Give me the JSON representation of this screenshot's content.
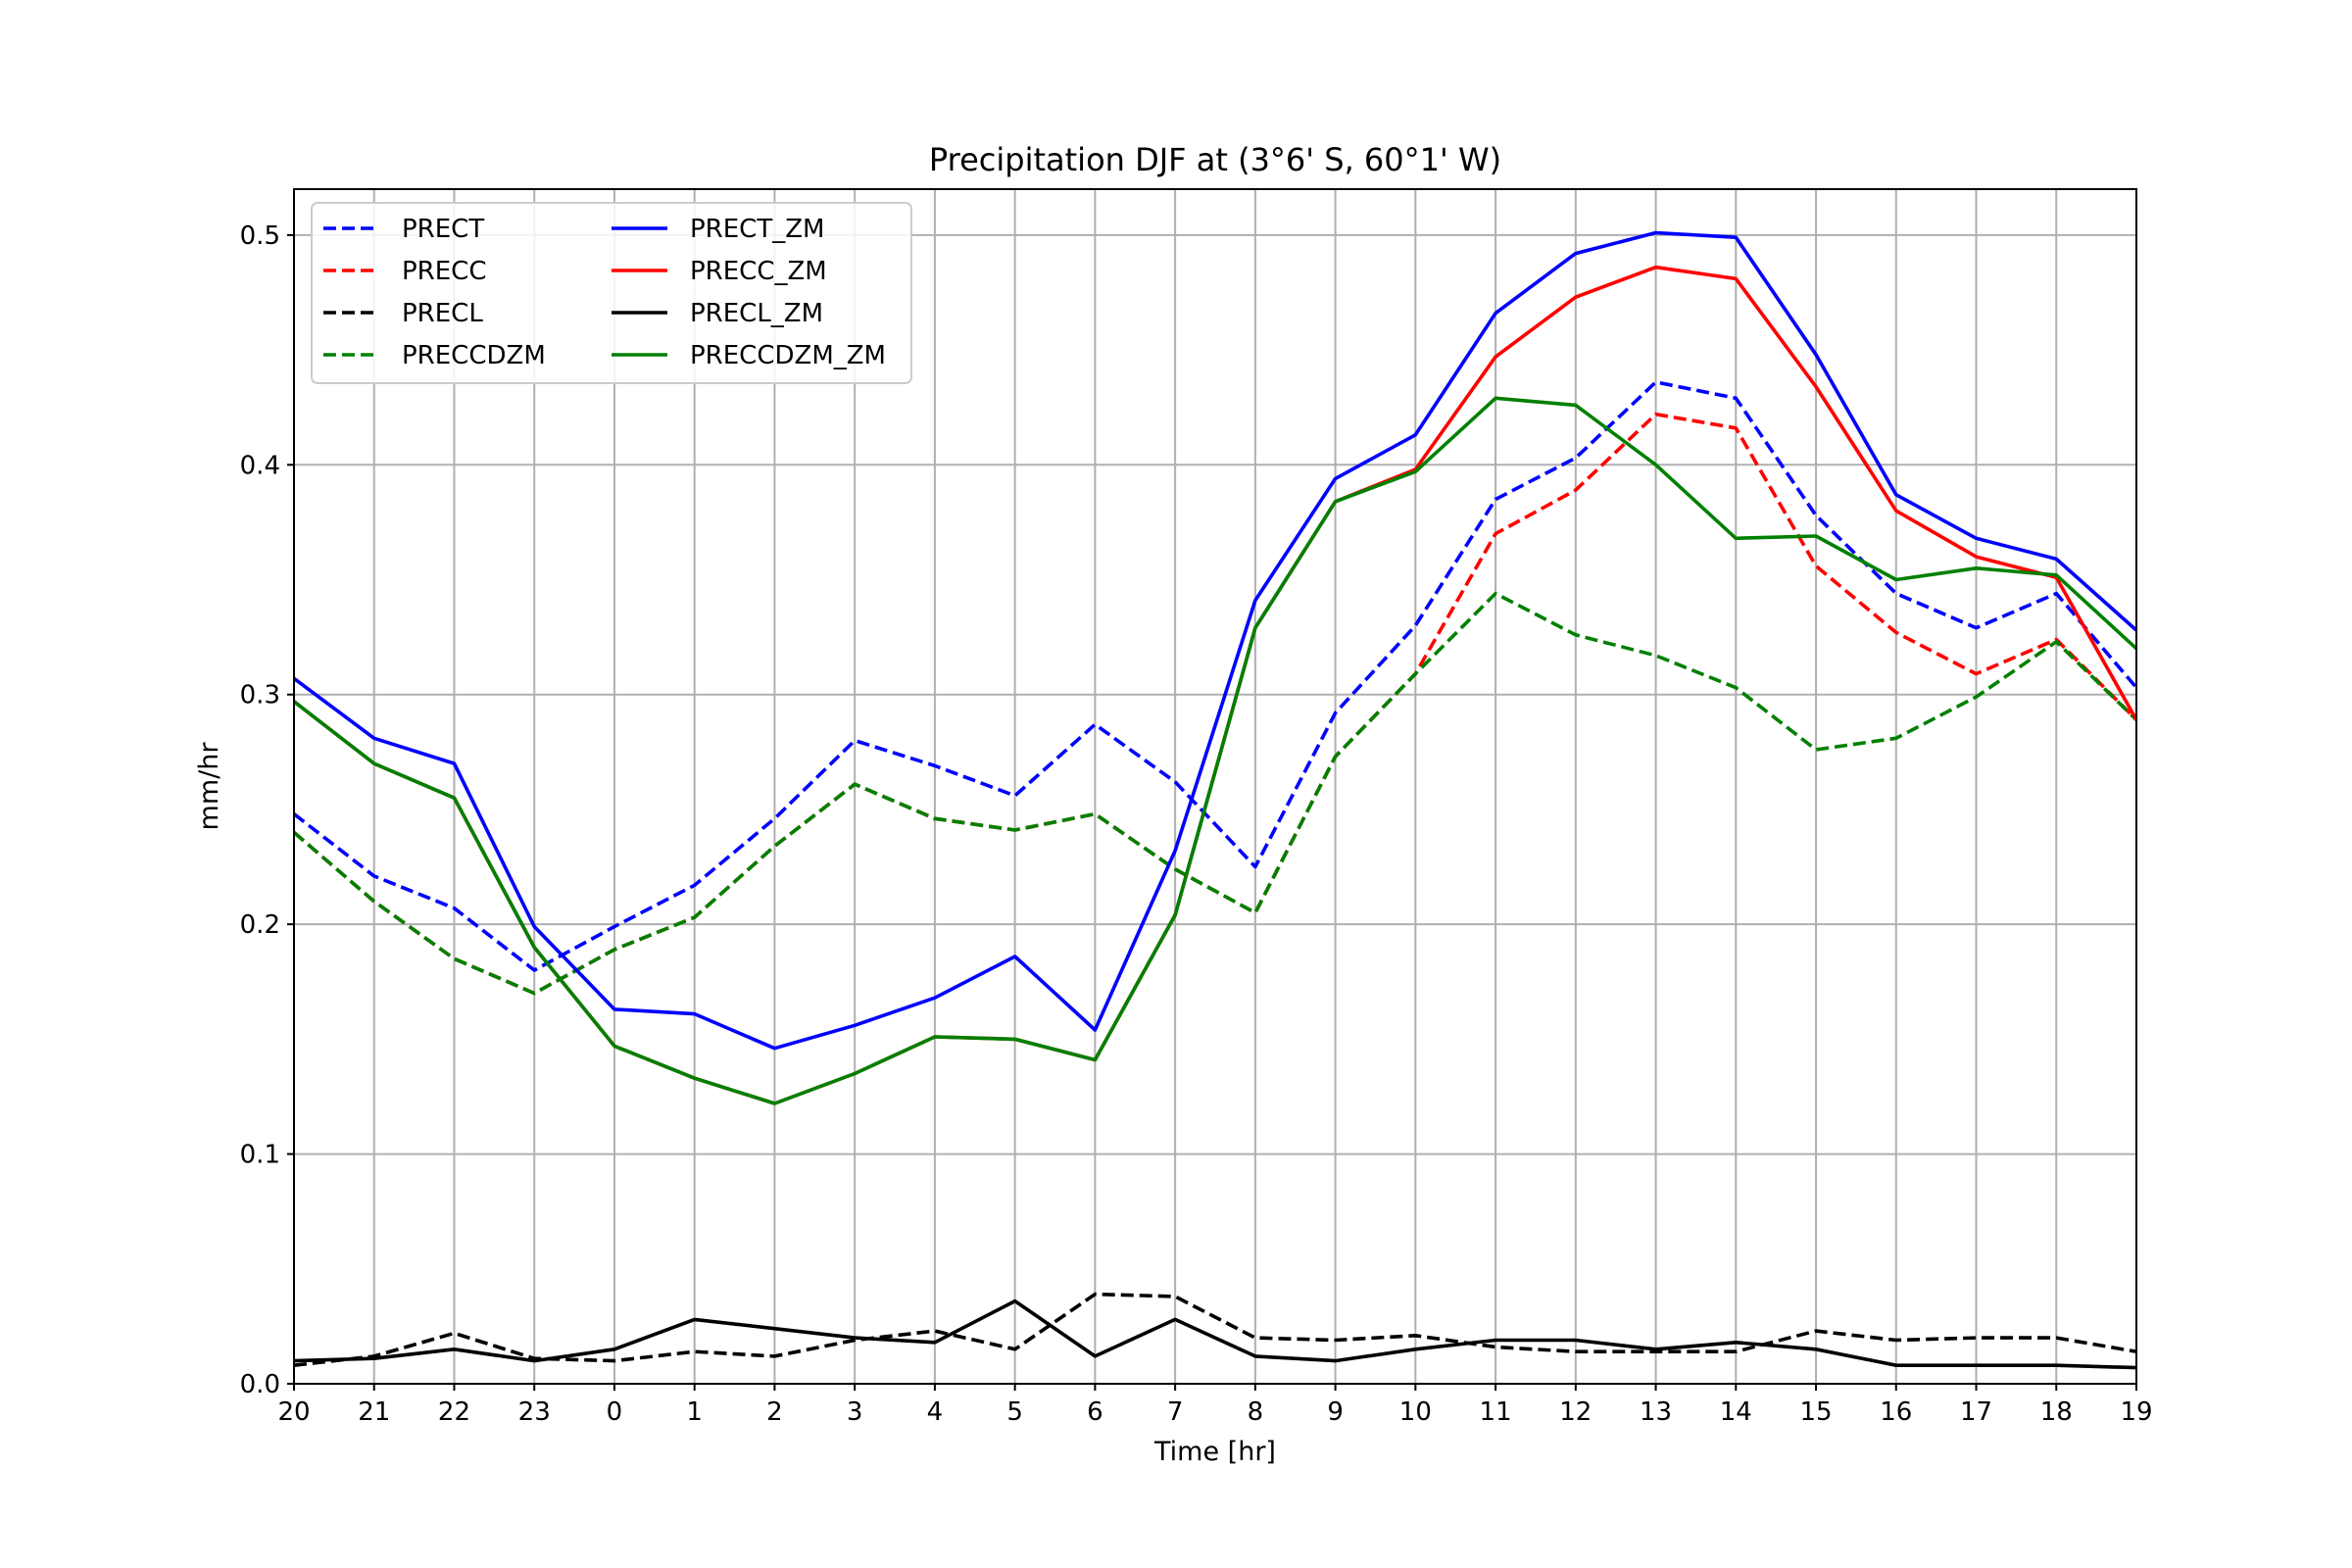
{
  "chart_data": {
    "type": "line",
    "title": "Precipitation DJF at (3°6' S, 60°1' W)",
    "xlabel": "Time [hr]",
    "ylabel": "mm/hr",
    "ylim": [
      0,
      0.52
    ],
    "grid": true,
    "legend_placement": "top-left",
    "categories": [
      "20",
      "21",
      "22",
      "23",
      "0",
      "1",
      "2",
      "3",
      "4",
      "5",
      "6",
      "7",
      "8",
      "9",
      "10",
      "11",
      "12",
      "13",
      "14",
      "15",
      "16",
      "17",
      "18",
      "19"
    ],
    "yticks": [
      "0.0",
      "0.1",
      "0.2",
      "0.3",
      "0.4",
      "0.5"
    ],
    "series": [
      {
        "name": "PRECT",
        "color": "#0000ff",
        "style": "dashed",
        "values": [
          0.248,
          0.221,
          0.207,
          0.18,
          0.199,
          0.217,
          0.246,
          0.28,
          0.269,
          0.256,
          0.287,
          0.262,
          0.225,
          0.292,
          0.33,
          0.385,
          0.403,
          0.436,
          0.429,
          0.378,
          0.344,
          0.329,
          0.344,
          0.303
        ]
      },
      {
        "name": "PRECC",
        "color": "#ff0000",
        "style": "dashed",
        "values": [
          0.24,
          0.21,
          0.185,
          0.17,
          0.189,
          0.203,
          0.234,
          0.261,
          0.246,
          0.241,
          0.248,
          0.224,
          0.205,
          0.273,
          0.309,
          0.37,
          0.389,
          0.422,
          0.416,
          0.356,
          0.327,
          0.309,
          0.324,
          0.289
        ]
      },
      {
        "name": "PRECL",
        "color": "#000000",
        "style": "dashed",
        "values": [
          0.008,
          0.012,
          0.022,
          0.011,
          0.01,
          0.014,
          0.012,
          0.019,
          0.023,
          0.015,
          0.039,
          0.038,
          0.02,
          0.019,
          0.021,
          0.016,
          0.014,
          0.014,
          0.014,
          0.023,
          0.019,
          0.02,
          0.02,
          0.014
        ]
      },
      {
        "name": "PRECCDZM",
        "color": "#008000",
        "style": "dashed",
        "values": [
          0.24,
          0.21,
          0.185,
          0.17,
          0.189,
          0.203,
          0.234,
          0.261,
          0.246,
          0.241,
          0.248,
          0.224,
          0.205,
          0.273,
          0.309,
          0.344,
          0.326,
          0.317,
          0.303,
          0.276,
          0.281,
          0.299,
          0.323,
          0.289
        ]
      },
      {
        "name": "PRECT_ZM",
        "color": "#0000ff",
        "style": "solid",
        "values": [
          0.307,
          0.281,
          0.27,
          0.199,
          0.163,
          0.161,
          0.146,
          0.156,
          0.168,
          0.186,
          0.154,
          0.232,
          0.341,
          0.394,
          0.413,
          0.466,
          0.492,
          0.501,
          0.499,
          0.448,
          0.387,
          0.368,
          0.359,
          0.328
        ]
      },
      {
        "name": "PRECC_ZM",
        "color": "#ff0000",
        "style": "solid",
        "values": [
          0.297,
          0.27,
          0.255,
          0.19,
          0.147,
          0.133,
          0.122,
          0.135,
          0.151,
          0.15,
          0.141,
          0.204,
          0.329,
          0.384,
          0.398,
          0.447,
          0.473,
          0.486,
          0.481,
          0.434,
          0.38,
          0.36,
          0.351,
          0.289
        ]
      },
      {
        "name": "PRECL_ZM",
        "color": "#000000",
        "style": "solid",
        "values": [
          0.01,
          0.011,
          0.015,
          0.01,
          0.015,
          0.028,
          0.024,
          0.02,
          0.018,
          0.036,
          0.012,
          0.028,
          0.012,
          0.01,
          0.015,
          0.019,
          0.019,
          0.015,
          0.018,
          0.015,
          0.008,
          0.008,
          0.008,
          0.007
        ]
      },
      {
        "name": "PRECCDZM_ZM",
        "color": "#008000",
        "style": "solid",
        "values": [
          0.297,
          0.27,
          0.255,
          0.19,
          0.147,
          0.133,
          0.122,
          0.135,
          0.151,
          0.15,
          0.141,
          0.204,
          0.329,
          0.384,
          0.397,
          0.429,
          0.426,
          0.4,
          0.368,
          0.369,
          0.35,
          0.355,
          0.352,
          0.32
        ]
      }
    ]
  }
}
